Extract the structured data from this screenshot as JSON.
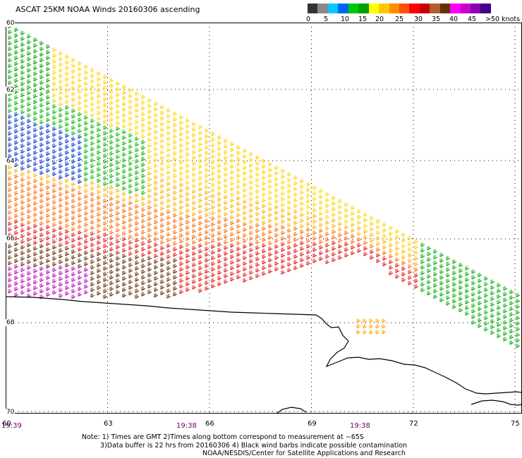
{
  "title": "ASCAT 25KM NOAA Winds 20160306 ascending",
  "colorbar": {
    "colors": [
      "#333333",
      "#888888",
      "#00c8ff",
      "#0064ff",
      "#00c800",
      "#00a000",
      "#ffff00",
      "#ffc800",
      "#ff8c00",
      "#ff5000",
      "#ff0000",
      "#c80000",
      "#b06030",
      "#643200",
      "#ff00ff",
      "#c800c8",
      "#8c00b4",
      "#46008c"
    ],
    "labels": [
      "0",
      "5",
      "10",
      "15",
      "20",
      "25",
      "30",
      "35",
      "40",
      "45",
      ">50 knots"
    ]
  },
  "lat_labels": [
    "60",
    "62",
    "64",
    "66",
    "68",
    "70"
  ],
  "lon_labels": [
    "60",
    "63",
    "66",
    "69",
    "72",
    "75"
  ],
  "times": [
    "19:39",
    "19:38",
    "19:38"
  ],
  "notes": [
    "Note: 1) Times are GMT 2)Times along bottom correspond to measurement at −65S",
    "3)Data buffer is 22 hrs from 20160306 4) Black wind barbs indicate possible contamination",
    "NOAA/NESDIS/Center for Satellite Applications and Research"
  ]
}
